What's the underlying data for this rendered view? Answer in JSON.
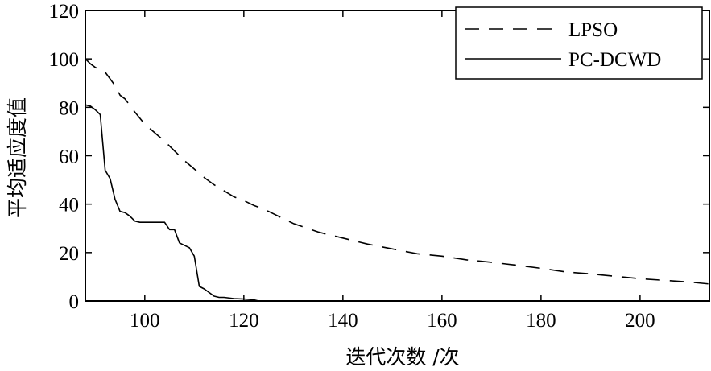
{
  "chart_data": {
    "type": "line",
    "xlabel": "迭代次数 /次",
    "ylabel": "平均适应度值",
    "xlim": [
      88,
      214
    ],
    "ylim": [
      0,
      120
    ],
    "xticks": [
      100,
      120,
      140,
      160,
      180,
      200
    ],
    "yticks": [
      0,
      20,
      40,
      60,
      80,
      100,
      120
    ],
    "legend_position": "top-right",
    "grid": false,
    "series": [
      {
        "name": "LPSO",
        "style": "dashed",
        "color": "#000000",
        "x": [
          88,
          89,
          90,
          92,
          94,
          95,
          96,
          98,
          100,
          102,
          104,
          106,
          108,
          110,
          112,
          114,
          116,
          118,
          120,
          122,
          124,
          126,
          128,
          130,
          135,
          140,
          145,
          150,
          155,
          160,
          165,
          170,
          175,
          180,
          185,
          190,
          195,
          200,
          205,
          210,
          214
        ],
        "y": [
          100,
          98,
          96.5,
          94.5,
          89,
          85,
          83.5,
          78,
          73,
          69.5,
          66,
          62,
          58,
          54.5,
          51,
          48,
          45.5,
          43,
          41.5,
          39.5,
          38,
          36,
          34,
          32,
          28.5,
          26,
          23.5,
          21.5,
          19.5,
          18.5,
          17,
          16,
          14.8,
          13.5,
          12,
          11.2,
          10.2,
          9.2,
          8.5,
          7.8,
          7
        ]
      },
      {
        "name": "PC-DCWD",
        "style": "solid",
        "color": "#000000",
        "x": [
          88,
          89,
          90,
          91,
          92,
          93,
          94,
          95,
          96,
          97,
          98,
          99,
          100,
          101,
          102,
          103,
          104,
          105,
          106,
          107,
          108,
          109,
          110,
          111,
          112,
          113,
          114,
          115,
          116,
          118,
          120,
          122,
          123,
          125,
          130,
          214
        ],
        "y": [
          81,
          80.5,
          79,
          77,
          54,
          50.5,
          42,
          37,
          36.5,
          35,
          33,
          32.5,
          32.5,
          32.5,
          32.5,
          32.5,
          32.5,
          29.5,
          29.5,
          24,
          23,
          22,
          18.5,
          6,
          5,
          3.5,
          2,
          1.5,
          1.5,
          1,
          0.8,
          0.5,
          0,
          0,
          0,
          0
        ]
      }
    ]
  }
}
